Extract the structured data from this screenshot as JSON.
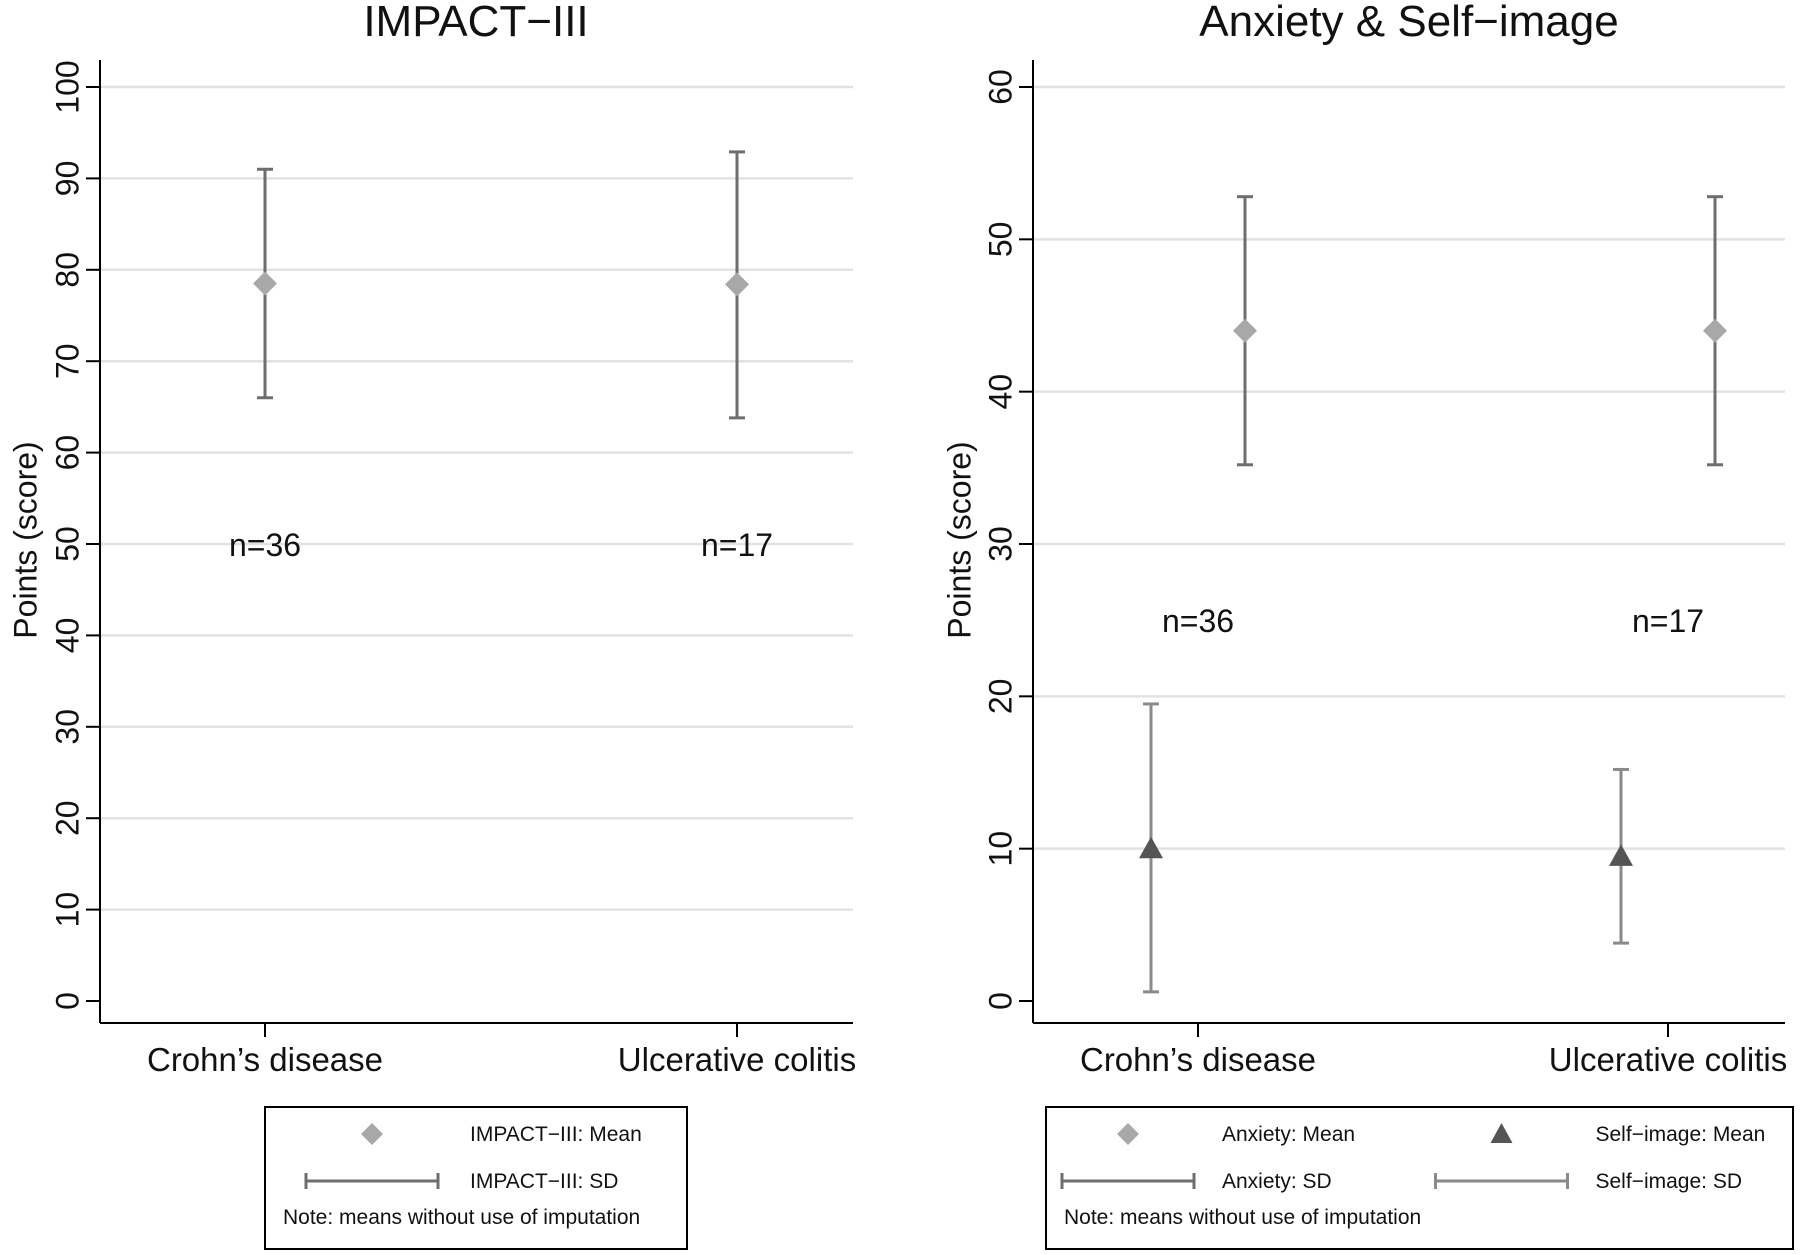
{
  "chart_data": [
    {
      "type": "scatter",
      "title": "IMPACT−III",
      "ylabel": "Points (score)",
      "ylim": [
        0,
        100
      ],
      "yticks": [
        0,
        10,
        20,
        30,
        40,
        50,
        60,
        70,
        80,
        90,
        100
      ],
      "ytick_labels": [
        "0",
        "10",
        "20",
        "30",
        "40",
        "50",
        "60",
        "70",
        "80",
        "90",
        "100"
      ],
      "categories": [
        "Crohn’s disease",
        "Ulcerative colitis"
      ],
      "grid": true,
      "series": [
        {
          "name": "IMPACT−III",
          "mean_label": "IMPACT−III: Mean",
          "sd_label": "IMPACT−III: SD",
          "marker": "diamond",
          "color": "#a8a8a8",
          "bar_color": "#6e6e6e",
          "x_offset": 0,
          "mean": [
            78.5,
            78.4
          ],
          "sd_low": [
            66.0,
            63.8
          ],
          "sd_high": [
            91.0,
            92.9
          ]
        }
      ],
      "annotations": [
        {
          "text": "n=36",
          "category": 0,
          "x_offset": 0,
          "y": 50
        },
        {
          "text": "n=17",
          "category": 1,
          "x_offset": 0,
          "y": 50
        }
      ],
      "legend": {
        "placement": "bottom",
        "note": "Note: means without use of imputation"
      }
    },
    {
      "type": "scatter",
      "title": "Anxiety & Self−image",
      "ylabel": "Points (score)",
      "ylim": [
        0,
        60
      ],
      "yticks": [
        0,
        10,
        20,
        30,
        40,
        50,
        60
      ],
      "ytick_labels": [
        "0",
        "10",
        "20",
        "30",
        "40",
        "50",
        "60"
      ],
      "categories": [
        "Crohn’s disease",
        "Ulcerative colitis"
      ],
      "grid": true,
      "series": [
        {
          "name": "Anxiety",
          "mean_label": "Anxiety: Mean",
          "sd_label": "Anxiety: SD",
          "marker": "diamond",
          "color": "#a8a8a8",
          "bar_color": "#6e6e6e",
          "x_offset": 0.1,
          "mean": [
            44.0,
            44.0
          ],
          "sd_low": [
            35.2,
            35.2
          ],
          "sd_high": [
            52.8,
            52.8
          ]
        },
        {
          "name": "Self−image",
          "mean_label": "Self−image: Mean",
          "sd_label": "Self−image: SD",
          "marker": "triangle",
          "color": "#555555",
          "bar_color": "#8a8a8a",
          "x_offset": -0.1,
          "mean": [
            10.0,
            9.5
          ],
          "sd_low": [
            0.6,
            3.8
          ],
          "sd_high": [
            19.5,
            15.2
          ]
        }
      ],
      "annotations": [
        {
          "text": "n=36",
          "category": 0,
          "x_offset": 0,
          "y": 25
        },
        {
          "text": "n=17",
          "category": 1,
          "x_offset": 0,
          "y": 25
        }
      ],
      "legend": {
        "placement": "bottom",
        "note": "Note: means without use of imputation"
      }
    }
  ]
}
